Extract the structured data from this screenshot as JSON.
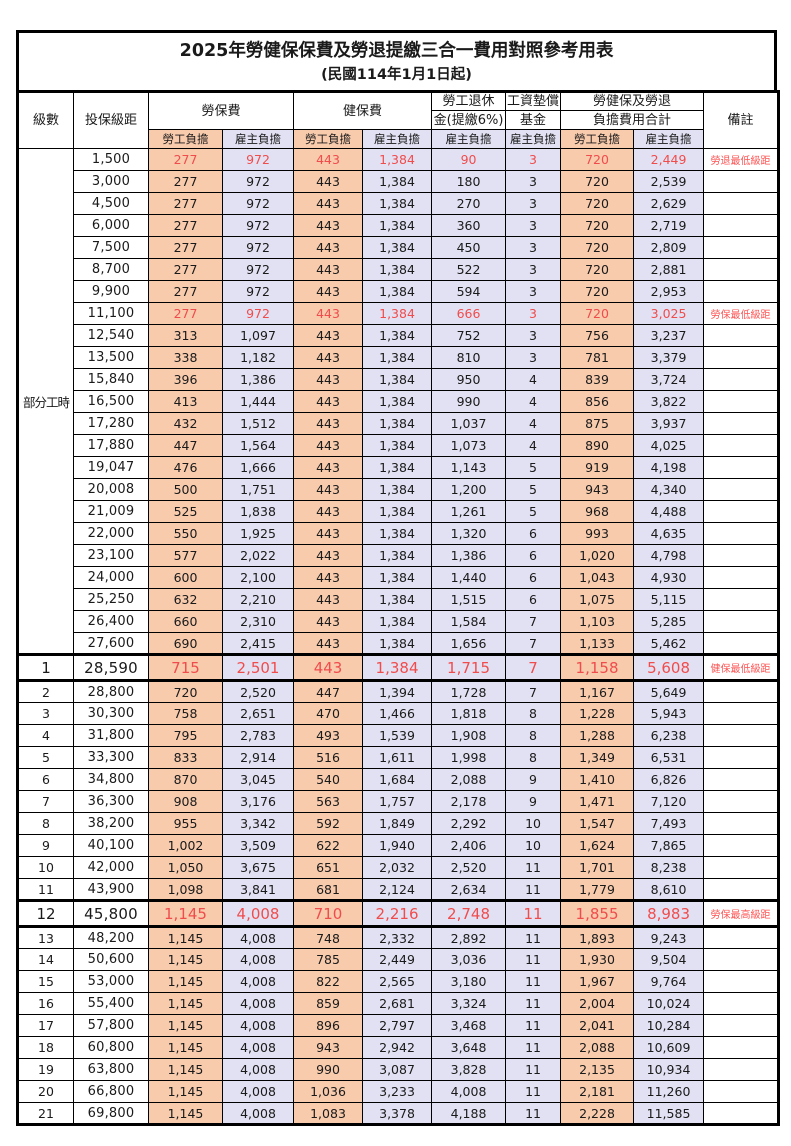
{
  "title": "2025年勞健保保費及勞退提繳三合一費用對照參考用表",
  "subtitle": "(民國114年1月1日起)",
  "colors": {
    "employee_fill": "#f8cbad",
    "employer_fill": "#e2e1f3",
    "highlight_text": "#f04c4c",
    "note_text": "#ff5252",
    "border": "#000000"
  },
  "header": {
    "level": "級數",
    "bracket": "投保級距",
    "labor_insurance": "勞保費",
    "health_insurance": "健保費",
    "pension_line1": "勞工退休",
    "pension_line2": "金(提繳6%)",
    "wage_fund_line1": "工資墊償",
    "wage_fund_line2": "基金",
    "total_line1": "勞健保及勞退",
    "total_line2": "負擔費用合計",
    "remark": "備註",
    "employee_share": "勞工負擔",
    "employer_share": "雇主負擔"
  },
  "part_time_label": "部分工時",
  "part_time_rowspan": 23,
  "rows": [
    {
      "level": "",
      "bracket": "1,500",
      "values": [
        "277",
        "972",
        "443",
        "1,384",
        "90",
        "3",
        "720",
        "2,449"
      ],
      "red": true,
      "big": false,
      "note": "勞退最低級距"
    },
    {
      "level": "",
      "bracket": "3,000",
      "values": [
        "277",
        "972",
        "443",
        "1,384",
        "180",
        "3",
        "720",
        "2,539"
      ],
      "red": false,
      "big": false,
      "note": ""
    },
    {
      "level": "",
      "bracket": "4,500",
      "values": [
        "277",
        "972",
        "443",
        "1,384",
        "270",
        "3",
        "720",
        "2,629"
      ],
      "red": false,
      "big": false,
      "note": ""
    },
    {
      "level": "",
      "bracket": "6,000",
      "values": [
        "277",
        "972",
        "443",
        "1,384",
        "360",
        "3",
        "720",
        "2,719"
      ],
      "red": false,
      "big": false,
      "note": ""
    },
    {
      "level": "",
      "bracket": "7,500",
      "values": [
        "277",
        "972",
        "443",
        "1,384",
        "450",
        "3",
        "720",
        "2,809"
      ],
      "red": false,
      "big": false,
      "note": ""
    },
    {
      "level": "",
      "bracket": "8,700",
      "values": [
        "277",
        "972",
        "443",
        "1,384",
        "522",
        "3",
        "720",
        "2,881"
      ],
      "red": false,
      "big": false,
      "note": ""
    },
    {
      "level": "",
      "bracket": "9,900",
      "values": [
        "277",
        "972",
        "443",
        "1,384",
        "594",
        "3",
        "720",
        "2,953"
      ],
      "red": false,
      "big": false,
      "note": ""
    },
    {
      "level": "",
      "bracket": "11,100",
      "values": [
        "277",
        "972",
        "443",
        "1,384",
        "666",
        "3",
        "720",
        "3,025"
      ],
      "red": true,
      "big": false,
      "note": "勞保最低級距"
    },
    {
      "level": "",
      "bracket": "12,540",
      "values": [
        "313",
        "1,097",
        "443",
        "1,384",
        "752",
        "3",
        "756",
        "3,237"
      ],
      "red": false,
      "big": false,
      "note": ""
    },
    {
      "level": "",
      "bracket": "13,500",
      "values": [
        "338",
        "1,182",
        "443",
        "1,384",
        "810",
        "3",
        "781",
        "3,379"
      ],
      "red": false,
      "big": false,
      "note": ""
    },
    {
      "level": "",
      "bracket": "15,840",
      "values": [
        "396",
        "1,386",
        "443",
        "1,384",
        "950",
        "4",
        "839",
        "3,724"
      ],
      "red": false,
      "big": false,
      "note": ""
    },
    {
      "level": "",
      "bracket": "16,500",
      "values": [
        "413",
        "1,444",
        "443",
        "1,384",
        "990",
        "4",
        "856",
        "3,822"
      ],
      "red": false,
      "big": false,
      "note": ""
    },
    {
      "level": "",
      "bracket": "17,280",
      "values": [
        "432",
        "1,512",
        "443",
        "1,384",
        "1,037",
        "4",
        "875",
        "3,937"
      ],
      "red": false,
      "big": false,
      "note": ""
    },
    {
      "level": "",
      "bracket": "17,880",
      "values": [
        "447",
        "1,564",
        "443",
        "1,384",
        "1,073",
        "4",
        "890",
        "4,025"
      ],
      "red": false,
      "big": false,
      "note": ""
    },
    {
      "level": "",
      "bracket": "19,047",
      "values": [
        "476",
        "1,666",
        "443",
        "1,384",
        "1,143",
        "5",
        "919",
        "4,198"
      ],
      "red": false,
      "big": false,
      "note": ""
    },
    {
      "level": "",
      "bracket": "20,008",
      "values": [
        "500",
        "1,751",
        "443",
        "1,384",
        "1,200",
        "5",
        "943",
        "4,340"
      ],
      "red": false,
      "big": false,
      "note": ""
    },
    {
      "level": "",
      "bracket": "21,009",
      "values": [
        "525",
        "1,838",
        "443",
        "1,384",
        "1,261",
        "5",
        "968",
        "4,488"
      ],
      "red": false,
      "big": false,
      "note": ""
    },
    {
      "level": "",
      "bracket": "22,000",
      "values": [
        "550",
        "1,925",
        "443",
        "1,384",
        "1,320",
        "6",
        "993",
        "4,635"
      ],
      "red": false,
      "big": false,
      "note": ""
    },
    {
      "level": "",
      "bracket": "23,100",
      "values": [
        "577",
        "2,022",
        "443",
        "1,384",
        "1,386",
        "6",
        "1,020",
        "4,798"
      ],
      "red": false,
      "big": false,
      "note": ""
    },
    {
      "level": "",
      "bracket": "24,000",
      "values": [
        "600",
        "2,100",
        "443",
        "1,384",
        "1,440",
        "6",
        "1,043",
        "4,930"
      ],
      "red": false,
      "big": false,
      "note": ""
    },
    {
      "level": "",
      "bracket": "25,250",
      "values": [
        "632",
        "2,210",
        "443",
        "1,384",
        "1,515",
        "6",
        "1,075",
        "5,115"
      ],
      "red": false,
      "big": false,
      "note": ""
    },
    {
      "level": "",
      "bracket": "26,400",
      "values": [
        "660",
        "2,310",
        "443",
        "1,384",
        "1,584",
        "7",
        "1,103",
        "5,285"
      ],
      "red": false,
      "big": false,
      "note": ""
    },
    {
      "level": "",
      "bracket": "27,600",
      "values": [
        "690",
        "2,415",
        "443",
        "1,384",
        "1,656",
        "7",
        "1,133",
        "5,462"
      ],
      "red": false,
      "big": false,
      "note": ""
    },
    {
      "level": "1",
      "bracket": "28,590",
      "values": [
        "715",
        "2,501",
        "443",
        "1,384",
        "1,715",
        "7",
        "1,158",
        "5,608"
      ],
      "red": true,
      "big": true,
      "note": "健保最低級距"
    },
    {
      "level": "2",
      "bracket": "28,800",
      "values": [
        "720",
        "2,520",
        "447",
        "1,394",
        "1,728",
        "7",
        "1,167",
        "5,649"
      ],
      "red": false,
      "big": false,
      "note": ""
    },
    {
      "level": "3",
      "bracket": "30,300",
      "values": [
        "758",
        "2,651",
        "470",
        "1,466",
        "1,818",
        "8",
        "1,228",
        "5,943"
      ],
      "red": false,
      "big": false,
      "note": ""
    },
    {
      "level": "4",
      "bracket": "31,800",
      "values": [
        "795",
        "2,783",
        "493",
        "1,539",
        "1,908",
        "8",
        "1,288",
        "6,238"
      ],
      "red": false,
      "big": false,
      "note": ""
    },
    {
      "level": "5",
      "bracket": "33,300",
      "values": [
        "833",
        "2,914",
        "516",
        "1,611",
        "1,998",
        "8",
        "1,349",
        "6,531"
      ],
      "red": false,
      "big": false,
      "note": ""
    },
    {
      "level": "6",
      "bracket": "34,800",
      "values": [
        "870",
        "3,045",
        "540",
        "1,684",
        "2,088",
        "9",
        "1,410",
        "6,826"
      ],
      "red": false,
      "big": false,
      "note": ""
    },
    {
      "level": "7",
      "bracket": "36,300",
      "values": [
        "908",
        "3,176",
        "563",
        "1,757",
        "2,178",
        "9",
        "1,471",
        "7,120"
      ],
      "red": false,
      "big": false,
      "note": ""
    },
    {
      "level": "8",
      "bracket": "38,200",
      "values": [
        "955",
        "3,342",
        "592",
        "1,849",
        "2,292",
        "10",
        "1,547",
        "7,493"
      ],
      "red": false,
      "big": false,
      "note": ""
    },
    {
      "level": "9",
      "bracket": "40,100",
      "values": [
        "1,002",
        "3,509",
        "622",
        "1,940",
        "2,406",
        "10",
        "1,624",
        "7,865"
      ],
      "red": false,
      "big": false,
      "note": ""
    },
    {
      "level": "10",
      "bracket": "42,000",
      "values": [
        "1,050",
        "3,675",
        "651",
        "2,032",
        "2,520",
        "11",
        "1,701",
        "8,238"
      ],
      "red": false,
      "big": false,
      "note": ""
    },
    {
      "level": "11",
      "bracket": "43,900",
      "values": [
        "1,098",
        "3,841",
        "681",
        "2,124",
        "2,634",
        "11",
        "1,779",
        "8,610"
      ],
      "red": false,
      "big": false,
      "note": ""
    },
    {
      "level": "12",
      "bracket": "45,800",
      "values": [
        "1,145",
        "4,008",
        "710",
        "2,216",
        "2,748",
        "11",
        "1,855",
        "8,983"
      ],
      "red": true,
      "big": true,
      "note": "勞保最高級距"
    },
    {
      "level": "13",
      "bracket": "48,200",
      "values": [
        "1,145",
        "4,008",
        "748",
        "2,332",
        "2,892",
        "11",
        "1,893",
        "9,243"
      ],
      "red": false,
      "big": false,
      "note": ""
    },
    {
      "level": "14",
      "bracket": "50,600",
      "values": [
        "1,145",
        "4,008",
        "785",
        "2,449",
        "3,036",
        "11",
        "1,930",
        "9,504"
      ],
      "red": false,
      "big": false,
      "note": ""
    },
    {
      "level": "15",
      "bracket": "53,000",
      "values": [
        "1,145",
        "4,008",
        "822",
        "2,565",
        "3,180",
        "11",
        "1,967",
        "9,764"
      ],
      "red": false,
      "big": false,
      "note": ""
    },
    {
      "level": "16",
      "bracket": "55,400",
      "values": [
        "1,145",
        "4,008",
        "859",
        "2,681",
        "3,324",
        "11",
        "2,004",
        "10,024"
      ],
      "red": false,
      "big": false,
      "note": ""
    },
    {
      "level": "17",
      "bracket": "57,800",
      "values": [
        "1,145",
        "4,008",
        "896",
        "2,797",
        "3,468",
        "11",
        "2,041",
        "10,284"
      ],
      "red": false,
      "big": false,
      "note": ""
    },
    {
      "level": "18",
      "bracket": "60,800",
      "values": [
        "1,145",
        "4,008",
        "943",
        "2,942",
        "3,648",
        "11",
        "2,088",
        "10,609"
      ],
      "red": false,
      "big": false,
      "note": ""
    },
    {
      "level": "19",
      "bracket": "63,800",
      "values": [
        "1,145",
        "4,008",
        "990",
        "3,087",
        "3,828",
        "11",
        "2,135",
        "10,934"
      ],
      "red": false,
      "big": false,
      "note": ""
    },
    {
      "level": "20",
      "bracket": "66,800",
      "values": [
        "1,145",
        "4,008",
        "1,036",
        "3,233",
        "4,008",
        "11",
        "2,181",
        "11,260"
      ],
      "red": false,
      "big": false,
      "note": ""
    },
    {
      "level": "21",
      "bracket": "69,800",
      "values": [
        "1,145",
        "4,008",
        "1,083",
        "3,378",
        "4,188",
        "11",
        "2,228",
        "11,585"
      ],
      "red": false,
      "big": false,
      "note": ""
    }
  ]
}
